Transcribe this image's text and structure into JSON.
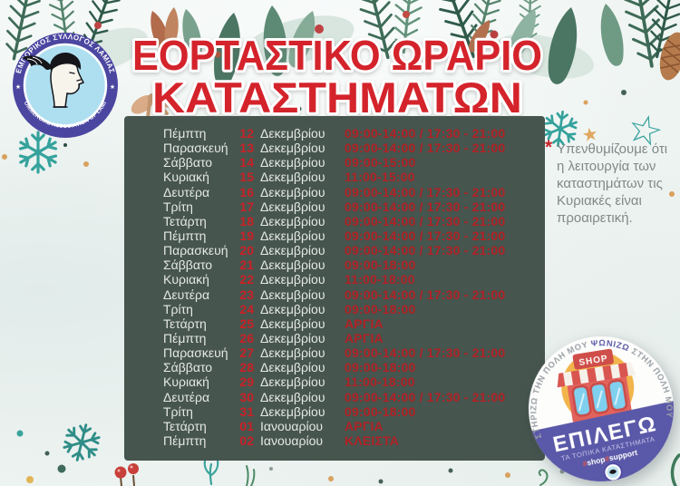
{
  "colors": {
    "accent_red": "#d4232b",
    "hours_red": "#b02125",
    "date_red": "#ca2127",
    "panel_green": "#46554e",
    "badge_purple": "#5a58a8",
    "logo_ring_purple": "#4b46a0",
    "logo_inner_blue": "#aedff0",
    "decoration_teal": "#38a39b",
    "background": "#eef4f2"
  },
  "icons": {
    "star_filled": "★",
    "star_outline": "☆",
    "note_asterisk": "*"
  },
  "logo": {
    "top_text": "ΕΜΠΟΡΙΚΟΣ ΣΥΛΛΟΓΟΣ ΛΑΜΙΑΣ",
    "bottom_text": "COMMERCIAL ASSOCIATION OF LAMIA"
  },
  "title": {
    "line1": "ΕΟΡΤΑΣΤΙΚΟ ΩΡΑΡΙΟ",
    "line2": "ΚΑΤΑΣΤΗΜΑΤΩΝ"
  },
  "schedule": {
    "rows": [
      {
        "day": "Πέμπτη",
        "date": "12",
        "month": "Δεκεμβρίου",
        "hours": "09:00-14:00 / 17:30 - 21:00"
      },
      {
        "day": "Παρασκευή",
        "date": "13",
        "month": "Δεκεμβρίου",
        "hours": "09:00-14:00 / 17:30 - 21:00"
      },
      {
        "day": "Σάββατο",
        "date": "14",
        "month": "Δεκεμβρίου",
        "hours": "09:00-15:00"
      },
      {
        "day": "Κυριακή",
        "date": "15",
        "month": "Δεκεμβρίου",
        "hours": "11:00-15:00"
      },
      {
        "day": "Δευτέρα",
        "date": "16",
        "month": "Δεκεμβρίου",
        "hours": "09:00-14:00 / 17:30 - 21:00"
      },
      {
        "day": "Τρίτη",
        "date": "17",
        "month": "Δεκεμβρίου",
        "hours": "09:00-14:00 / 17:30 - 21:00"
      },
      {
        "day": "Τετάρτη",
        "date": "18",
        "month": "Δεκεμβρίου",
        "hours": "09:00-14:00 / 17:30 - 21:00"
      },
      {
        "day": "Πέμπτη",
        "date": "19",
        "month": "Δεκεμβρίου",
        "hours": "09:00-14:00 / 17:30 - 21:00"
      },
      {
        "day": "Παρασκευή",
        "date": "20",
        "month": "Δεκεμβρίου",
        "hours": "09:00-14:00 / 17:30 - 21:00"
      },
      {
        "day": "Σάββατο",
        "date": "21",
        "month": "Δεκεμβρίου",
        "hours": "09:00-18:00"
      },
      {
        "day": "Κυριακή",
        "date": "22",
        "month": "Δεκεμβρίου",
        "hours": "11:00-18:00"
      },
      {
        "day": "Δευτέρα",
        "date": "23",
        "month": "Δεκεμβρίου",
        "hours": "09:00-14:00 / 17:30 - 21:00"
      },
      {
        "day": "Τρίτη",
        "date": "24",
        "month": "Δεκεμβρίου",
        "hours": "09:00-18:00"
      },
      {
        "day": "Τετάρτη",
        "date": "25",
        "month": "Δεκεμβρίου",
        "hours": "ΑΡΓΙΑ"
      },
      {
        "day": "Πέμπτη",
        "date": "26",
        "month": "Δεκεμβρίου",
        "hours": "ΑΡΓΙΑ"
      },
      {
        "day": "Παρασκευή",
        "date": "27",
        "month": "Δεκεμβρίου",
        "hours": "09:00-14:00 / 17:30 - 21:00"
      },
      {
        "day": "Σάββατο",
        "date": "28",
        "month": "Δεκεμβρίου",
        "hours": "09:00-18:00"
      },
      {
        "day": "Κυριακή",
        "date": "29",
        "month": "Δεκεμβρίου",
        "hours": "11:00-18:00"
      },
      {
        "day": "Δευτέρα",
        "date": "30",
        "month": "Δεκεμβρίου",
        "hours": "09:00-14:00 / 17:30 - 21:00"
      },
      {
        "day": "Τρίτη",
        "date": "31",
        "month": "Δεκεμβρίου",
        "hours": "09:00-18:00"
      },
      {
        "day": "Τετάρτη",
        "date": "01",
        "month": "Ιανουαρίου",
        "hours": "ΑΡΓΙΑ"
      },
      {
        "day": "Πέμπτη",
        "date": "02",
        "month": "Ιανουαρίου",
        "hours": "ΚΛΕΙΣΤΑ"
      }
    ]
  },
  "note": {
    "symbol": "*",
    "text": "Υπενθυμίζουμε ότι η λειτουργία των καταστημάτων τις Κυριακές είναι προαιρετική."
  },
  "badge": {
    "arc_pre": "ΣΤΗΡΙΖΩ ΤΗΝ ΠΟΛΗ ΜΟΥ ",
    "arc_highlight": "ΨΩΝΙΖΩ",
    "arc_post": " ΣΤΗΝ ΠΟΛΗ ΜΟΥ",
    "shop_sign": "SHOP",
    "main": "ΕΠΙΛΕΓΩ",
    "sub": "ΤΑ ΤΟΠΙΚΑ ΚΑΤΑΣΤΗΜΑΤΑ",
    "hash1": "#",
    "word1": "shop",
    "hash2": "#",
    "word2": "support"
  }
}
